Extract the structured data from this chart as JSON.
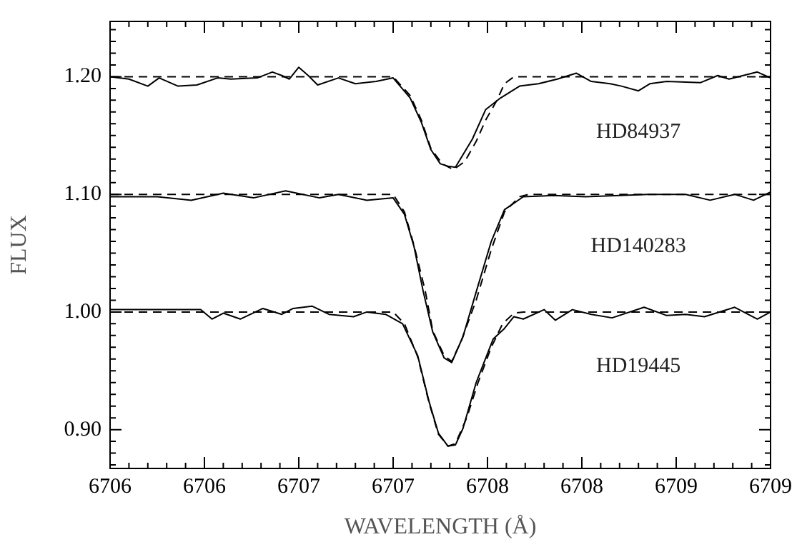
{
  "chart_data": {
    "type": "line",
    "xlabel": "WAVELENGTH (Å)",
    "ylabel": "FLUX",
    "xlim": [
      6706.0,
      6709.5
    ],
    "ylim": [
      0.867,
      1.247
    ],
    "xticks": [
      {
        "value": 6706.0,
        "label": "6706"
      },
      {
        "value": 6706.1,
        "label": null
      },
      {
        "value": 6706.2,
        "label": null
      },
      {
        "value": 6706.3,
        "label": null
      },
      {
        "value": 6706.4,
        "label": null
      },
      {
        "value": 6706.5,
        "label": "6706"
      },
      {
        "value": 6706.6,
        "label": null
      },
      {
        "value": 6706.7,
        "label": null
      },
      {
        "value": 6706.8,
        "label": null
      },
      {
        "value": 6706.9,
        "label": null
      },
      {
        "value": 6707.0,
        "label": "6707"
      },
      {
        "value": 6707.1,
        "label": null
      },
      {
        "value": 6707.2,
        "label": null
      },
      {
        "value": 6707.3,
        "label": null
      },
      {
        "value": 6707.4,
        "label": null
      },
      {
        "value": 6707.5,
        "label": "6707"
      },
      {
        "value": 6707.6,
        "label": null
      },
      {
        "value": 6707.7,
        "label": null
      },
      {
        "value": 6707.8,
        "label": null
      },
      {
        "value": 6707.9,
        "label": null
      },
      {
        "value": 6708.0,
        "label": "6708"
      },
      {
        "value": 6708.1,
        "label": null
      },
      {
        "value": 6708.2,
        "label": null
      },
      {
        "value": 6708.3,
        "label": null
      },
      {
        "value": 6708.4,
        "label": null
      },
      {
        "value": 6708.5,
        "label": "6708"
      },
      {
        "value": 6708.6,
        "label": null
      },
      {
        "value": 6708.7,
        "label": null
      },
      {
        "value": 6708.8,
        "label": null
      },
      {
        "value": 6708.9,
        "label": null
      },
      {
        "value": 6709.0,
        "label": "6709"
      },
      {
        "value": 6709.1,
        "label": null
      },
      {
        "value": 6709.2,
        "label": null
      },
      {
        "value": 6709.3,
        "label": null
      },
      {
        "value": 6709.4,
        "label": null
      },
      {
        "value": 6709.5,
        "label": "6709"
      }
    ],
    "yticks": [
      {
        "value": 0.87,
        "label": null
      },
      {
        "value": 0.88,
        "label": null
      },
      {
        "value": 0.89,
        "label": null
      },
      {
        "value": 0.9,
        "label": "0.90"
      },
      {
        "value": 0.91,
        "label": null
      },
      {
        "value": 0.92,
        "label": null
      },
      {
        "value": 0.93,
        "label": null
      },
      {
        "value": 0.94,
        "label": null
      },
      {
        "value": 0.95,
        "label": null
      },
      {
        "value": 0.96,
        "label": null
      },
      {
        "value": 0.97,
        "label": null
      },
      {
        "value": 0.98,
        "label": null
      },
      {
        "value": 0.99,
        "label": null
      },
      {
        "value": 1.0,
        "label": "1.00"
      },
      {
        "value": 1.01,
        "label": null
      },
      {
        "value": 1.02,
        "label": null
      },
      {
        "value": 1.03,
        "label": null
      },
      {
        "value": 1.04,
        "label": null
      },
      {
        "value": 1.05,
        "label": null
      },
      {
        "value": 1.06,
        "label": null
      },
      {
        "value": 1.07,
        "label": null
      },
      {
        "value": 1.08,
        "label": null
      },
      {
        "value": 1.09,
        "label": null
      },
      {
        "value": 1.1,
        "label": "1.10"
      },
      {
        "value": 1.11,
        "label": null
      },
      {
        "value": 1.12,
        "label": null
      },
      {
        "value": 1.13,
        "label": null
      },
      {
        "value": 1.14,
        "label": null
      },
      {
        "value": 1.15,
        "label": null
      },
      {
        "value": 1.16,
        "label": null
      },
      {
        "value": 1.17,
        "label": null
      },
      {
        "value": 1.18,
        "label": null
      },
      {
        "value": 1.19,
        "label": null
      },
      {
        "value": 1.2,
        "label": "1.20"
      },
      {
        "value": 1.21,
        "label": null
      },
      {
        "value": 1.22,
        "label": null
      },
      {
        "value": 1.23,
        "label": null
      },
      {
        "value": 1.24,
        "label": null
      }
    ],
    "grid": false,
    "legend": false,
    "marker": "none",
    "series": [
      {
        "name": "HD84937",
        "color": "#000000",
        "line_style": "solid",
        "x": [
          6706.0,
          6706.1,
          6706.2,
          6706.26,
          6706.36,
          6706.46,
          6706.57,
          6706.64,
          6706.78,
          6706.86,
          6706.91,
          6706.95,
          6707.0,
          6707.05,
          6707.1,
          6707.21,
          6707.3,
          6707.41,
          6707.5,
          6707.59,
          6707.65,
          6707.7,
          6707.75,
          6707.79,
          6707.83,
          6707.92,
          6707.99,
          6708.07,
          6708.17,
          6708.27,
          6708.37,
          6708.47,
          6708.55,
          6708.65,
          6708.71,
          6708.8,
          6708.86,
          6708.95,
          6709.13,
          6709.22,
          6709.28,
          6709.43,
          6709.5
        ],
        "values": [
          1.2,
          1.198,
          1.192,
          1.199,
          1.192,
          1.193,
          1.199,
          1.198,
          1.199,
          1.204,
          1.201,
          1.198,
          1.208,
          1.201,
          1.193,
          1.199,
          1.194,
          1.196,
          1.199,
          1.182,
          1.161,
          1.138,
          1.126,
          1.124,
          1.123,
          1.147,
          1.172,
          1.182,
          1.192,
          1.194,
          1.198,
          1.203,
          1.196,
          1.194,
          1.192,
          1.188,
          1.194,
          1.196,
          1.195,
          1.201,
          1.198,
          1.204,
          1.199
        ]
      },
      {
        "color": "#000000",
        "line_style": "dashed",
        "x": [
          6706.0,
          6707.5,
          6707.59,
          6707.65,
          6707.7,
          6707.76,
          6707.82,
          6707.88,
          6707.94,
          6707.99,
          6708.05,
          6708.09,
          6708.14,
          6709.5
        ],
        "values": [
          1.2,
          1.2,
          1.184,
          1.163,
          1.139,
          1.126,
          1.121,
          1.128,
          1.145,
          1.163,
          1.18,
          1.194,
          1.2,
          1.2
        ]
      },
      {
        "name": "HD140283",
        "color": "#000000",
        "line_style": "solid",
        "x": [
          6706.0,
          6706.1,
          6706.25,
          6706.43,
          6706.6,
          6706.76,
          6706.93,
          6707.11,
          6707.21,
          6707.36,
          6707.5,
          6707.56,
          6707.61,
          6707.66,
          6707.71,
          6707.77,
          6707.81,
          6707.87,
          6707.94,
          6708.02,
          6708.09,
          6708.19,
          6708.35,
          6708.52,
          6708.7,
          6708.85,
          6709.05,
          6709.18,
          6709.31,
          6709.41,
          6709.5
        ],
        "values": [
          1.098,
          1.098,
          1.098,
          1.095,
          1.101,
          1.097,
          1.103,
          1.097,
          1.1,
          1.095,
          1.097,
          1.083,
          1.056,
          1.017,
          0.983,
          0.961,
          0.957,
          0.979,
          1.017,
          1.06,
          1.087,
          1.098,
          1.099,
          1.098,
          1.099,
          1.1,
          1.1,
          1.095,
          1.1,
          1.095,
          1.102
        ]
      },
      {
        "color": "#000000",
        "line_style": "dashed",
        "x": [
          6706.0,
          6707.5,
          6707.56,
          6707.61,
          6707.67,
          6707.71,
          6707.77,
          6707.81,
          6707.86,
          6707.94,
          6708.02,
          6708.09,
          6708.17,
          6708.22,
          6709.5
        ],
        "values": [
          1.1,
          1.1,
          1.085,
          1.057,
          1.018,
          0.984,
          0.963,
          0.958,
          0.975,
          1.01,
          1.053,
          1.085,
          1.098,
          1.1,
          1.1
        ]
      },
      {
        "name": "HD19445",
        "color": "#000000",
        "line_style": "solid",
        "x": [
          6706.0,
          6706.1,
          6706.3,
          6706.48,
          6706.54,
          6706.6,
          6706.69,
          6706.81,
          6706.91,
          6706.97,
          6707.07,
          6707.16,
          6707.29,
          6707.36,
          6707.46,
          6707.55,
          6707.63,
          6707.69,
          6707.74,
          6707.79,
          6707.83,
          6707.87,
          6707.94,
          6708.03,
          6708.09,
          6708.14,
          6708.19,
          6708.3,
          6708.36,
          6708.45,
          6708.55,
          6708.66,
          6708.83,
          6708.95,
          6709.05,
          6709.15,
          6709.31,
          6709.43,
          6709.5
        ],
        "values": [
          1.002,
          1.002,
          1.002,
          1.002,
          0.994,
          0.999,
          0.994,
          1.003,
          0.998,
          1.003,
          1.005,
          0.998,
          0.996,
          1.0,
          0.998,
          0.99,
          0.963,
          0.924,
          0.897,
          0.886,
          0.887,
          0.901,
          0.94,
          0.977,
          0.986,
          0.996,
          0.994,
          1.002,
          0.993,
          1.002,
          0.998,
          0.995,
          1.004,
          0.997,
          0.998,
          0.996,
          1.004,
          0.994,
          1.0
        ]
      },
      {
        "color": "#000000",
        "line_style": "dashed",
        "x": [
          6706.0,
          6707.5,
          6707.56,
          6707.63,
          6707.69,
          6707.74,
          6707.79,
          6707.83,
          6707.89,
          6707.95,
          6708.02,
          6708.08,
          6708.14,
          6708.19,
          6709.5
        ],
        "values": [
          1.0,
          1.0,
          0.99,
          0.962,
          0.923,
          0.896,
          0.886,
          0.888,
          0.91,
          0.94,
          0.97,
          0.99,
          0.999,
          1.0,
          1.0
        ]
      }
    ]
  }
}
